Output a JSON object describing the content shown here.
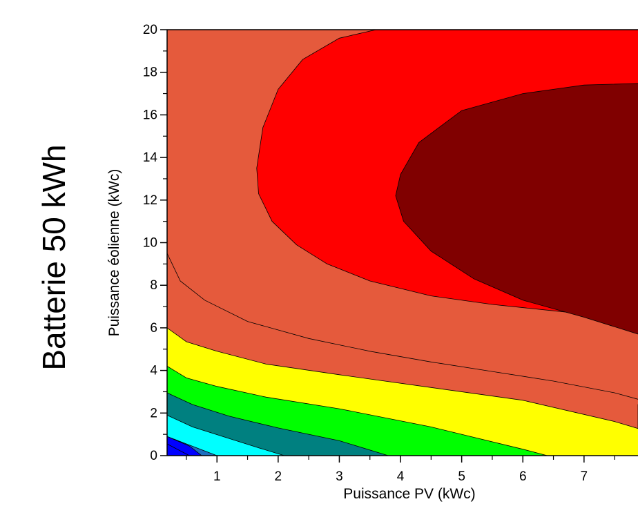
{
  "side_title": "Batterie 50 kWh",
  "chart_data": {
    "type": "contour",
    "xlabel": "Puissance PV (kWc)",
    "ylabel": "Puissance éolienne (kWc)",
    "xlim": [
      0.1,
      8.2
    ],
    "ylim": [
      0,
      20
    ],
    "x_ticks": [
      1,
      2,
      3,
      4,
      5,
      6,
      7
    ],
    "y_ticks": [
      0,
      2,
      4,
      6,
      8,
      10,
      12,
      14,
      16,
      18,
      20
    ],
    "grid": false,
    "legend": "none",
    "levels": [
      {
        "color": "#0000ff"
      },
      {
        "color": "#1e6fc0"
      },
      {
        "color": "#00ffff"
      },
      {
        "color": "#008080"
      },
      {
        "color": "#00ff00"
      },
      {
        "color": "#ffff00"
      },
      {
        "color": "#e55a3c"
      },
      {
        "color": "#ff0000"
      },
      {
        "color": "#800000"
      }
    ],
    "contour_lines": [
      {
        "fill": "#1e6fc0",
        "points": [
          [
            0.1,
            0.9
          ],
          [
            0.5,
            0.55
          ],
          [
            1.0,
            0.0
          ]
        ]
      },
      {
        "fill": "#00ffff",
        "points": [
          [
            0.1,
            1.9
          ],
          [
            0.6,
            1.35
          ],
          [
            1.2,
            0.8
          ],
          [
            1.7,
            0.35
          ],
          [
            2.1,
            0.0
          ]
        ]
      },
      {
        "fill": "#008080",
        "points": [
          [
            0.1,
            2.95
          ],
          [
            0.6,
            2.4
          ],
          [
            1.2,
            1.85
          ],
          [
            2.0,
            1.3
          ],
          [
            3.0,
            0.7
          ],
          [
            3.8,
            0.0
          ]
        ]
      },
      {
        "fill": "#00ff00",
        "points": [
          [
            0.1,
            4.2
          ],
          [
            0.5,
            3.65
          ],
          [
            1.0,
            3.25
          ],
          [
            1.8,
            2.75
          ],
          [
            3.0,
            2.2
          ],
          [
            4.5,
            1.35
          ],
          [
            6.0,
            0.3
          ],
          [
            6.4,
            0.0
          ]
        ]
      },
      {
        "fill": "#ffff00",
        "points": [
          [
            0.1,
            6.0
          ],
          [
            0.5,
            5.35
          ],
          [
            1.0,
            4.9
          ],
          [
            1.8,
            4.3
          ],
          [
            3.0,
            3.8
          ],
          [
            4.5,
            3.2
          ],
          [
            6.0,
            2.6
          ],
          [
            7.5,
            1.6
          ],
          [
            8.2,
            1.0
          ]
        ]
      },
      {
        "fill": "#e55a3c",
        "points": [
          [
            0.1,
            9.5
          ],
          [
            0.4,
            8.2
          ],
          [
            0.8,
            7.3
          ],
          [
            1.5,
            6.3
          ],
          [
            2.5,
            5.5
          ],
          [
            3.5,
            4.9
          ],
          [
            4.5,
            4.4
          ],
          [
            5.5,
            3.95
          ],
          [
            6.5,
            3.5
          ],
          [
            7.5,
            2.95
          ],
          [
            8.2,
            2.4
          ]
        ]
      },
      {
        "fill": "#ff0000",
        "points": [
          [
            8.2,
            20.0
          ],
          [
            3.6,
            20.0
          ],
          [
            3.0,
            19.6
          ],
          [
            2.4,
            18.6
          ],
          [
            2.0,
            17.2
          ],
          [
            1.75,
            15.4
          ],
          [
            1.65,
            13.5
          ],
          [
            1.68,
            12.3
          ],
          [
            1.9,
            11.0
          ],
          [
            2.3,
            9.9
          ],
          [
            2.8,
            9.0
          ],
          [
            3.5,
            8.2
          ],
          [
            4.5,
            7.5
          ],
          [
            5.5,
            7.1
          ],
          [
            6.5,
            6.8
          ],
          [
            7.5,
            6.5
          ],
          [
            8.2,
            6.25
          ]
        ]
      },
      {
        "fill": "#800000",
        "points": [
          [
            8.2,
            17.5
          ],
          [
            7.0,
            17.4
          ],
          [
            6.0,
            17.0
          ],
          [
            5.0,
            16.2
          ],
          [
            4.3,
            14.7
          ],
          [
            4.0,
            13.2
          ],
          [
            3.92,
            12.2
          ],
          [
            4.05,
            11.0
          ],
          [
            4.5,
            9.6
          ],
          [
            5.2,
            8.3
          ],
          [
            6.0,
            7.3
          ],
          [
            7.0,
            6.5
          ],
          [
            8.0,
            5.6
          ],
          [
            8.2,
            5.5
          ]
        ]
      }
    ]
  }
}
